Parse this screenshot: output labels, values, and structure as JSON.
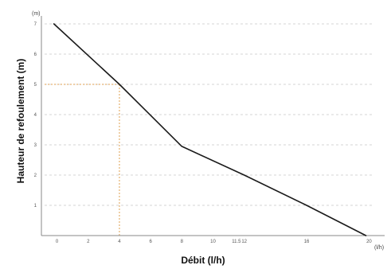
{
  "chart_data": {
    "type": "line",
    "title": "",
    "xlabel": "Débit (l/h)",
    "ylabel": "Hauteur de refoulement (m)",
    "x_unit": "(l/h)",
    "y_unit": "(m)",
    "xlim": [
      -1,
      21
    ],
    "ylim": [
      0,
      7
    ],
    "x_ticks": [
      {
        "value": 0,
        "label": "0"
      },
      {
        "value": 2,
        "label": "2"
      },
      {
        "value": 4,
        "label": "4"
      },
      {
        "value": 6,
        "label": "6"
      },
      {
        "value": 8,
        "label": "8"
      },
      {
        "value": 10,
        "label": "10"
      },
      {
        "value": 11.5,
        "label": "11.5"
      },
      {
        "value": 12,
        "label": "12"
      },
      {
        "value": 16,
        "label": "16"
      },
      {
        "value": 20,
        "label": "20"
      }
    ],
    "y_ticks": [
      {
        "value": 1,
        "label": "1"
      },
      {
        "value": 2,
        "label": "2"
      },
      {
        "value": 3,
        "label": "3"
      },
      {
        "value": 4,
        "label": "4"
      },
      {
        "value": 5,
        "label": "5"
      },
      {
        "value": 6,
        "label": "6"
      },
      {
        "value": 7,
        "label": "7"
      }
    ],
    "grid": "horizontal-dashed",
    "series": [
      {
        "x": [
          -0.2,
          4,
          8,
          12,
          16,
          19.8
        ],
        "y": [
          7,
          5,
          2.95,
          2,
          1,
          0
        ],
        "color": "#1a1a1a"
      }
    ],
    "reference_point": {
      "x": 4,
      "y": 5,
      "color": "#e0a050"
    },
    "colors": {
      "line": "#1a1a1a",
      "grid": "#c8c8c8",
      "axis": "#888888",
      "reference": "#e0a050"
    }
  }
}
